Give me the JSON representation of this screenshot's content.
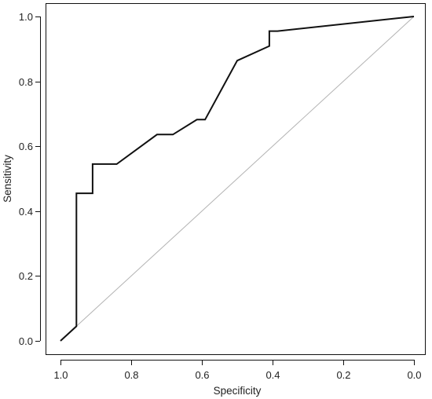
{
  "chart_data": {
    "type": "line",
    "title": "",
    "xlabel": "Specificity",
    "ylabel": "Sensitivity",
    "xlim": [
      1.0,
      0.0
    ],
    "ylim": [
      0.0,
      1.0
    ],
    "x_reversed": true,
    "grid": false,
    "legend": "none",
    "x_ticks": [
      {
        "value": 1.0,
        "label": "1.0"
      },
      {
        "value": 0.8,
        "label": "0.8"
      },
      {
        "value": 0.6,
        "label": "0.6"
      },
      {
        "value": 0.4,
        "label": "0.4"
      },
      {
        "value": 0.2,
        "label": "0.2"
      },
      {
        "value": 0.0,
        "label": "0.0"
      }
    ],
    "y_ticks": [
      {
        "value": 0.0,
        "label": "0.0"
      },
      {
        "value": 0.2,
        "label": "0.2"
      },
      {
        "value": 0.4,
        "label": "0.4"
      },
      {
        "value": 0.6,
        "label": "0.6"
      },
      {
        "value": 0.8,
        "label": "0.8"
      },
      {
        "value": 1.0,
        "label": "1.0"
      }
    ],
    "series": [
      {
        "color": "#111111",
        "points": [
          {
            "x": 1.0,
            "y": 0.0
          },
          {
            "x": 0.955,
            "y": 0.045
          },
          {
            "x": 0.955,
            "y": 0.455
          },
          {
            "x": 0.909,
            "y": 0.455
          },
          {
            "x": 0.909,
            "y": 0.545
          },
          {
            "x": 0.841,
            "y": 0.545
          },
          {
            "x": 0.727,
            "y": 0.636
          },
          {
            "x": 0.682,
            "y": 0.636
          },
          {
            "x": 0.614,
            "y": 0.682
          },
          {
            "x": 0.591,
            "y": 0.682
          },
          {
            "x": 0.5,
            "y": 0.864
          },
          {
            "x": 0.409,
            "y": 0.909
          },
          {
            "x": 0.409,
            "y": 0.955
          },
          {
            "x": 0.386,
            "y": 0.955
          },
          {
            "x": 0.0,
            "y": 1.0
          }
        ]
      }
    ],
    "reference_line": {
      "color": "#b3b3b3",
      "points": [
        {
          "x": 1.0,
          "y": 0.0
        },
        {
          "x": 0.0,
          "y": 1.0
        }
      ]
    }
  }
}
